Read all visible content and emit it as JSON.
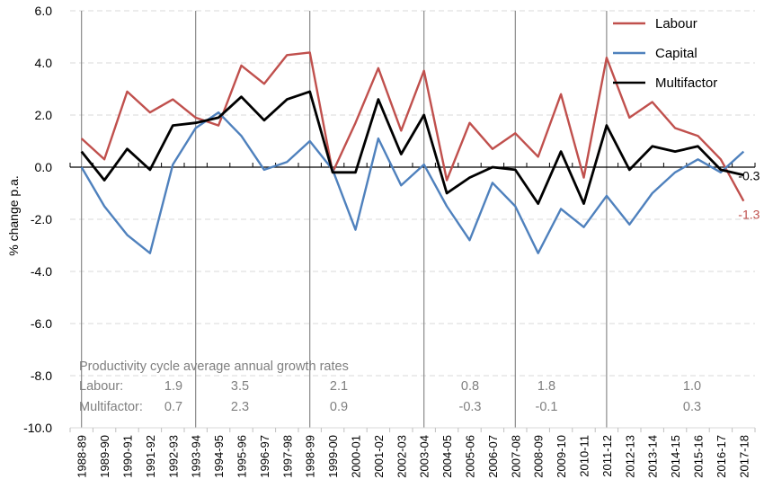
{
  "chart_data": {
    "type": "line",
    "ylabel": "% change p.a.",
    "ylim": [
      -10,
      6
    ],
    "yticks": [
      6,
      4,
      2,
      0,
      -2,
      -4,
      -6,
      -8,
      -10
    ],
    "ytick_labels": [
      "6.0",
      "4.0",
      "2.0",
      "0.0",
      "-2.0",
      "-4.0",
      "-6.0",
      "-8.0",
      "-10.0"
    ],
    "grid": true,
    "legend_position": "top-right",
    "categories": [
      "1988-89",
      "1989-90",
      "1990-91",
      "1991-92",
      "1992-93",
      "1993-94",
      "1994-95",
      "1995-96",
      "1996-97",
      "1997-98",
      "1998-99",
      "1999-00",
      "2000-01",
      "2001-02",
      "2002-03",
      "2003-04",
      "2004-05",
      "2005-06",
      "2006-07",
      "2007-08",
      "2008-09",
      "2009-10",
      "2010-11",
      "2011-12",
      "2012-13",
      "2013-14",
      "2014-15",
      "2015-16",
      "2016-17",
      "2017-18"
    ],
    "series": [
      {
        "name": "Labour",
        "color": "#c0504d",
        "values": [
          1.1,
          0.3,
          2.9,
          2.1,
          2.6,
          1.9,
          1.6,
          3.9,
          3.2,
          4.3,
          4.4,
          -0.2,
          1.7,
          3.8,
          1.4,
          3.7,
          -0.5,
          1.7,
          0.7,
          1.3,
          0.4,
          2.8,
          -0.4,
          4.2,
          1.9,
          2.5,
          1.5,
          1.2,
          0.3,
          -1.3
        ]
      },
      {
        "name": "Capital",
        "color": "#4f81bd",
        "values": [
          0.0,
          -1.5,
          -2.6,
          -3.3,
          0.1,
          1.5,
          2.1,
          1.2,
          -0.1,
          0.2,
          1.0,
          -0.1,
          -2.4,
          1.1,
          -0.7,
          0.1,
          -1.5,
          -2.8,
          -0.6,
          -1.5,
          -3.3,
          -1.6,
          -2.3,
          -1.1,
          -2.2,
          -1.0,
          -0.2,
          0.3,
          -0.2,
          0.6
        ]
      },
      {
        "name": "Multifactor",
        "color": "#000000",
        "values": [
          0.6,
          -0.5,
          0.7,
          -0.1,
          1.6,
          1.7,
          1.9,
          2.7,
          1.8,
          2.6,
          2.9,
          -0.2,
          -0.2,
          2.6,
          0.5,
          2.0,
          -1.0,
          -0.4,
          0.0,
          -0.1,
          -1.4,
          0.6,
          -1.4,
          1.6,
          -0.1,
          0.8,
          0.6,
          0.8,
          -0.1,
          -0.3
        ]
      }
    ],
    "end_labels": [
      {
        "series": "Multifactor",
        "text": "-0.3"
      },
      {
        "series": "Labour",
        "text": "-1.3"
      }
    ],
    "cycle_boundaries": [
      "1988-89",
      "1993-94",
      "1998-99",
      "2003-04",
      "2007-08",
      "2011-12"
    ],
    "annotations": {
      "title": "Productivity cycle average annual growth rates",
      "rows": [
        {
          "label": "Labour:",
          "values": [
            {
              "cycle": "1988-89 to 1993-94",
              "text": "1.9"
            },
            {
              "cycle": "1993-94 to 1998-99",
              "text": "3.5"
            },
            {
              "cycle": "1998-99 to 2003-04",
              "text": "2.1"
            },
            {
              "cycle": "2003-04 to 2007-08",
              "text": "0.8"
            },
            {
              "cycle": "2007-08 to 2011-12",
              "text": "1.8"
            },
            {
              "cycle": "2011-12 to 2017-18",
              "text": "1.0"
            }
          ]
        },
        {
          "label": "Multifactor:",
          "values": [
            {
              "cycle": "1988-89 to 1993-94",
              "text": "0.7"
            },
            {
              "cycle": "1993-94 to 1998-99",
              "text": "2.3"
            },
            {
              "cycle": "1998-99 to 2003-04",
              "text": "0.9"
            },
            {
              "cycle": "2003-04 to 2007-08",
              "text": "-0.3"
            },
            {
              "cycle": "2007-08 to 2011-12",
              "text": "-0.1"
            },
            {
              "cycle": "2011-12 to 2017-18",
              "text": "0.3"
            }
          ]
        }
      ]
    }
  }
}
